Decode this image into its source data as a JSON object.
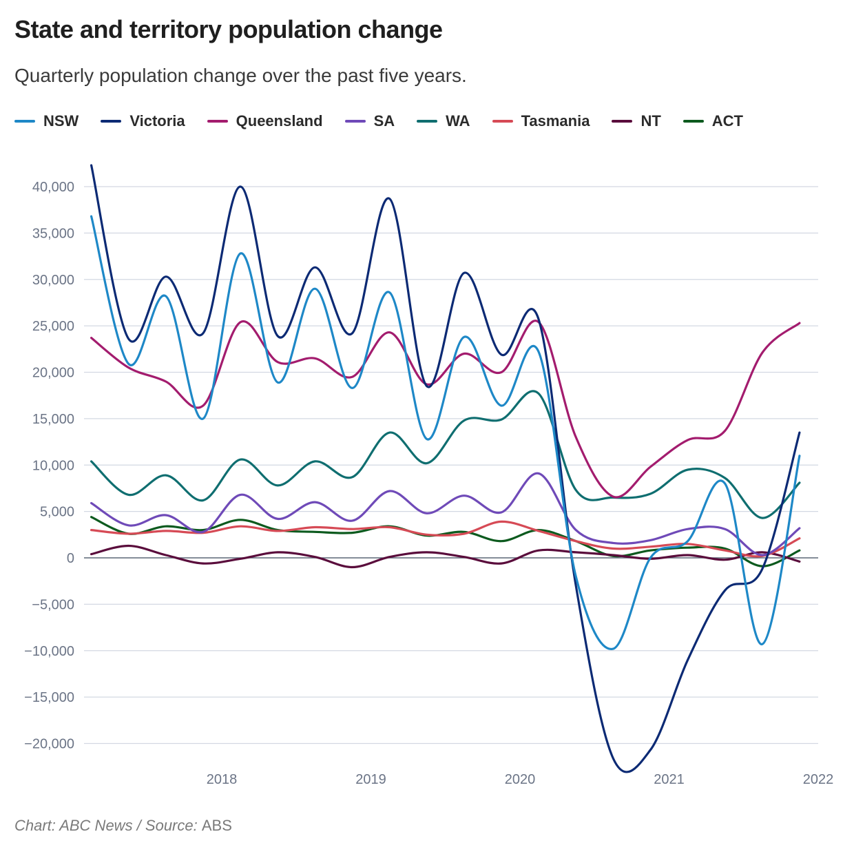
{
  "title": "State and territory population change",
  "subtitle": "Quarterly population change over the past five years.",
  "source": {
    "chart_label": "Chart: ABC News / ",
    "source_label": "Source: ",
    "source_name": "ABS"
  },
  "colors": {
    "NSW": "#1e88c7",
    "Victoria": "#0c2a74",
    "Queensland": "#a31c6e",
    "SA": "#6f4ab8",
    "WA": "#0f6e70",
    "Tasmania": "#d64a55",
    "NT": "#5a0d3c",
    "ACT": "#0c5a1e",
    "grid": "#d3d8e2",
    "zero": "#5c6677"
  },
  "chart_data": {
    "type": "line",
    "title": "State and territory population change",
    "subtitle": "Quarterly population change over the past five years.",
    "xlabel": "",
    "ylabel": "",
    "ylim": [
      -22000,
      42500
    ],
    "xlim": [
      2017.1,
      2022.0
    ],
    "yticks": [
      40000,
      35000,
      30000,
      25000,
      20000,
      15000,
      10000,
      5000,
      0,
      -5000,
      -10000,
      -15000,
      -20000
    ],
    "ytick_labels": [
      "40,000",
      "35,000",
      "30,000",
      "25,000",
      "20,000",
      "15,000",
      "10,000",
      "5,000",
      "0",
      "−5,000",
      "−10,000",
      "−15,000",
      "−20,000"
    ],
    "xticks": [
      2018,
      2019,
      2020,
      2021,
      2022
    ],
    "xtick_labels": [
      "2018",
      "2019",
      "2020",
      "2021",
      "2022"
    ],
    "grid": true,
    "legend": "top",
    "x": [
      2017.125,
      2017.375,
      2017.625,
      2017.875,
      2018.125,
      2018.375,
      2018.625,
      2018.875,
      2019.125,
      2019.375,
      2019.625,
      2019.875,
      2020.125,
      2020.375,
      2020.625,
      2020.875,
      2021.125,
      2021.375,
      2021.625,
      2021.875
    ],
    "series": [
      {
        "name": "NSW",
        "values": [
          36800,
          20900,
          28200,
          15000,
          32800,
          18900,
          29000,
          18300,
          28600,
          12800,
          23800,
          16400,
          22200,
          -2000,
          -9800,
          0,
          1800,
          8000,
          -9300,
          11000
        ]
      },
      {
        "name": "Victoria",
        "values": [
          42300,
          23600,
          30300,
          24200,
          40000,
          23900,
          31300,
          24200,
          38700,
          18500,
          30700,
          21900,
          25700,
          -3000,
          -21600,
          -20700,
          -11000,
          -3500,
          -1200,
          13500
        ]
      },
      {
        "name": "Queensland",
        "values": [
          23700,
          20500,
          19000,
          16400,
          25400,
          21100,
          21500,
          19500,
          24300,
          18700,
          22000,
          20000,
          25400,
          13000,
          6600,
          9800,
          12700,
          13700,
          22100,
          25300
        ]
      },
      {
        "name": "SA",
        "values": [
          5900,
          3500,
          4600,
          2800,
          6800,
          4200,
          6000,
          4000,
          7200,
          4800,
          6700,
          4900,
          9100,
          3000,
          1600,
          1900,
          3100,
          3100,
          300,
          3200
        ]
      },
      {
        "name": "WA",
        "values": [
          10400,
          6800,
          8900,
          6200,
          10600,
          7800,
          10400,
          8700,
          13500,
          10200,
          14800,
          14900,
          17700,
          7300,
          6500,
          6900,
          9500,
          8600,
          4300,
          8100
        ]
      },
      {
        "name": "Tasmania",
        "values": [
          3000,
          2600,
          2900,
          2700,
          3400,
          2900,
          3300,
          3100,
          3300,
          2500,
          2600,
          3900,
          2900,
          1800,
          1000,
          1200,
          1500,
          800,
          200,
          2100
        ]
      },
      {
        "name": "NT",
        "values": [
          400,
          1300,
          300,
          -600,
          -100,
          600,
          100,
          -1000,
          100,
          600,
          100,
          -600,
          800,
          600,
          300,
          -100,
          300,
          -200,
          600,
          -400
        ]
      },
      {
        "name": "ACT",
        "values": [
          4400,
          2600,
          3400,
          3000,
          4100,
          3000,
          2800,
          2700,
          3400,
          2400,
          2800,
          1800,
          3000,
          1800,
          200,
          800,
          1100,
          1000,
          -900,
          800
        ]
      }
    ]
  }
}
